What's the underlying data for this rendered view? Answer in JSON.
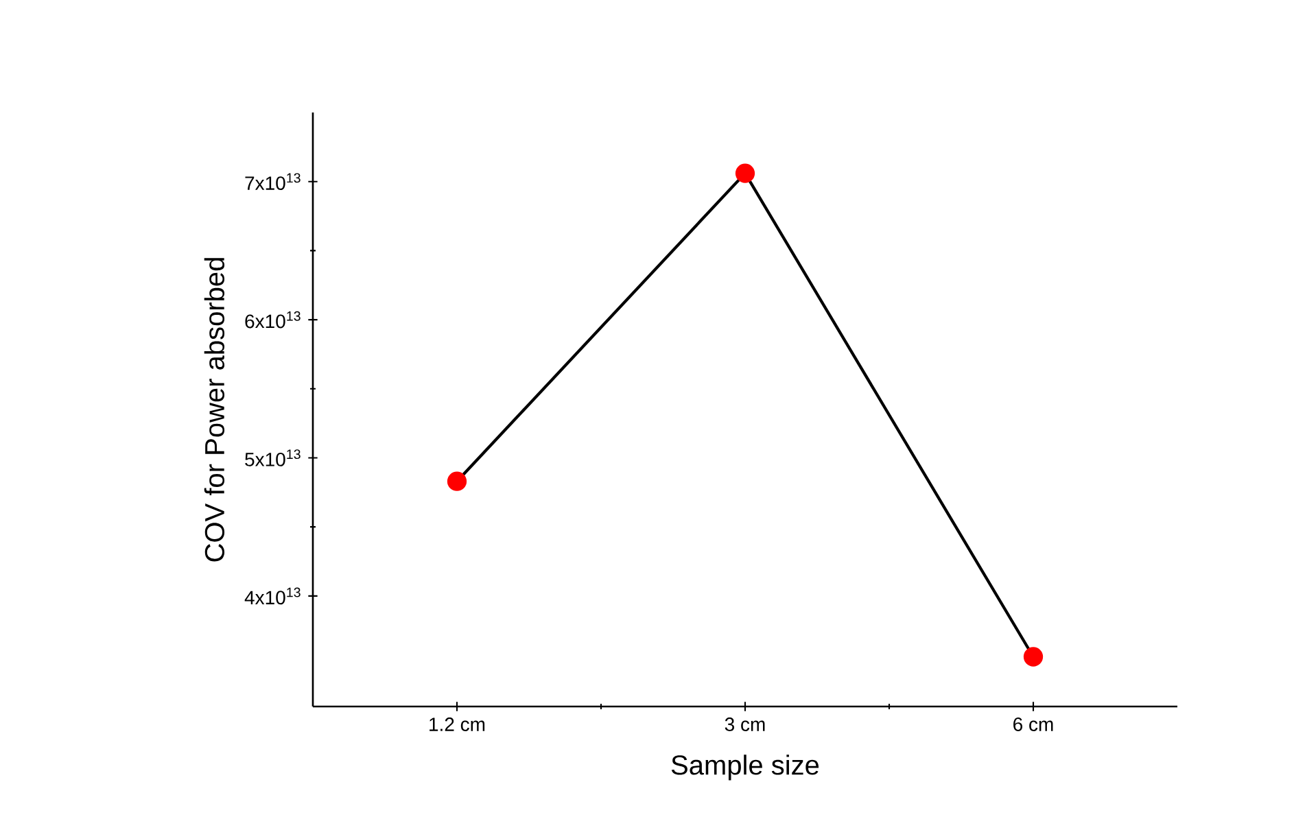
{
  "chart_data": {
    "type": "line",
    "xlabel": "Sample size",
    "ylabel": "COV for Power absorbed",
    "categories": [
      "1.2 cm",
      "3 cm",
      "6 cm"
    ],
    "series": [
      {
        "color": "#000000",
        "values": [
          48300000000000.0,
          70600000000000.0,
          35600000000000.0
        ]
      }
    ],
    "marker": "circle",
    "line_style": "solid",
    "grid": false,
    "ylim": [
      32000000000000.0,
      75000000000000.0
    ],
    "yticks": [
      {
        "value": 40000000000000.0,
        "label": "4x10$^{13}$"
      },
      {
        "value": 50000000000000.0,
        "label": "5x10$^{13}$"
      },
      {
        "value": 60000000000000.0,
        "label": "6x10$^{13}$"
      },
      {
        "value": 70000000000000.0,
        "label": "7x10$^{13}$"
      }
    ]
  }
}
